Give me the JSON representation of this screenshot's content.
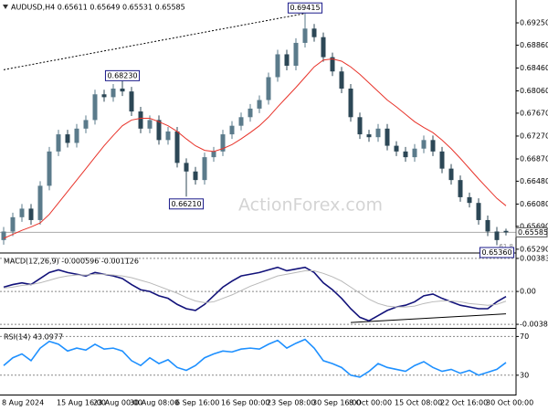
{
  "chart_data": [
    {
      "type": "candlestick",
      "title": "AUDUSD,H4 0.65611 0.65649 0.65531 0.65585",
      "up_color": "#5b7b8b",
      "down_color": "#2c4756",
      "open": [
        0.6545,
        0.656,
        0.6585,
        0.66,
        0.658,
        0.664,
        0.67,
        0.673,
        0.6715,
        0.674,
        0.6755,
        0.68,
        0.6795,
        0.681,
        0.6805,
        0.677,
        0.674,
        0.6755,
        0.672,
        0.6735,
        0.668,
        0.6665,
        0.665,
        0.669,
        0.67,
        0.673,
        0.6745,
        0.676,
        0.6775,
        0.679,
        0.683,
        0.687,
        0.685,
        0.689,
        0.6915,
        0.69,
        0.6865,
        0.684,
        0.681,
        0.676,
        0.673,
        0.6725,
        0.674,
        0.671,
        0.67,
        0.669,
        0.6705,
        0.672,
        0.67,
        0.667,
        0.665,
        0.662,
        0.661,
        0.658,
        0.656,
        0.65611
      ],
      "high": [
        0.6568,
        0.6593,
        0.6608,
        0.6608,
        0.6648,
        0.6708,
        0.6738,
        0.6738,
        0.6748,
        0.6763,
        0.6808,
        0.6808,
        0.6818,
        0.6823,
        0.6813,
        0.6778,
        0.6763,
        0.6763,
        0.6743,
        0.6743,
        0.6688,
        0.6673,
        0.6698,
        0.6708,
        0.6738,
        0.6753,
        0.6768,
        0.6783,
        0.6798,
        0.6838,
        0.6878,
        0.6878,
        0.6898,
        0.69415,
        0.6923,
        0.6908,
        0.6873,
        0.6848,
        0.6818,
        0.6768,
        0.6738,
        0.6748,
        0.6748,
        0.6718,
        0.6708,
        0.6713,
        0.6728,
        0.6728,
        0.6708,
        0.6678,
        0.6658,
        0.6628,
        0.6618,
        0.6588,
        0.6568,
        0.65649
      ],
      "low": [
        0.6537,
        0.6552,
        0.6577,
        0.6572,
        0.6572,
        0.6632,
        0.6692,
        0.6707,
        0.6707,
        0.6732,
        0.6747,
        0.6787,
        0.6787,
        0.6797,
        0.6762,
        0.6732,
        0.6732,
        0.6712,
        0.6712,
        0.6672,
        0.6621,
        0.6642,
        0.6642,
        0.6682,
        0.6692,
        0.6722,
        0.6737,
        0.6752,
        0.6767,
        0.6782,
        0.6822,
        0.6842,
        0.6842,
        0.6882,
        0.6892,
        0.6857,
        0.6832,
        0.6802,
        0.6752,
        0.6722,
        0.6717,
        0.6717,
        0.6702,
        0.6692,
        0.6682,
        0.6682,
        0.6697,
        0.6692,
        0.6662,
        0.6642,
        0.6612,
        0.6602,
        0.6572,
        0.6552,
        0.6536,
        0.65531
      ],
      "close": [
        0.656,
        0.6585,
        0.66,
        0.658,
        0.664,
        0.67,
        0.673,
        0.6715,
        0.674,
        0.6755,
        0.68,
        0.6795,
        0.681,
        0.6805,
        0.677,
        0.674,
        0.6755,
        0.672,
        0.6735,
        0.668,
        0.6665,
        0.665,
        0.669,
        0.67,
        0.673,
        0.6745,
        0.676,
        0.6775,
        0.679,
        0.683,
        0.687,
        0.685,
        0.689,
        0.6915,
        0.69,
        0.6865,
        0.684,
        0.681,
        0.676,
        0.673,
        0.6725,
        0.674,
        0.671,
        0.67,
        0.669,
        0.6705,
        0.672,
        0.67,
        0.667,
        0.665,
        0.662,
        0.661,
        0.658,
        0.656,
        0.6545,
        0.65585
      ],
      "ma": {
        "color": "#e8332a",
        "values": [
          0.6548,
          0.6555,
          0.6562,
          0.6568,
          0.6575,
          0.659,
          0.661,
          0.663,
          0.665,
          0.667,
          0.669,
          0.671,
          0.6728,
          0.6745,
          0.6755,
          0.6758,
          0.6758,
          0.6752,
          0.6745,
          0.6735,
          0.6722,
          0.671,
          0.6702,
          0.67,
          0.6705,
          0.6712,
          0.6722,
          0.6733,
          0.6745,
          0.676,
          0.6778,
          0.6795,
          0.6812,
          0.683,
          0.6848,
          0.686,
          0.6862,
          0.6858,
          0.6848,
          0.6835,
          0.682,
          0.6805,
          0.679,
          0.6778,
          0.6765,
          0.6752,
          0.6742,
          0.6733,
          0.672,
          0.6705,
          0.6688,
          0.667,
          0.6652,
          0.6635,
          0.6618,
          0.6605
        ]
      },
      "trendline": {
        "x": [
          0,
          33
        ],
        "values": [
          0.6843,
          0.69415
        ]
      },
      "annotations": [
        {
          "label": "0.69415",
          "x": 33,
          "value": 0.69415
        },
        {
          "label": "0.68230",
          "x": 13,
          "value": 0.6823
        },
        {
          "label": "0.66210",
          "x": 20,
          "value": 0.6621
        },
        {
          "label": "0.65360",
          "x": 54,
          "value": 0.6536
        }
      ],
      "current_price": {
        "value": 0.65585,
        "label": "0.65585"
      },
      "note": "61.8",
      "watermark": "ActionForex.com",
      "ylim": [
        0.6524,
        0.6965
      ],
      "yticks": [
        {
          "value": 0.6925,
          "label": "0.69250"
        },
        {
          "value": 0.6886,
          "label": "0.68860"
        },
        {
          "value": 0.6846,
          "label": "0.68460"
        },
        {
          "value": 0.6806,
          "label": "0.68060"
        },
        {
          "value": 0.6767,
          "label": "0.67670"
        },
        {
          "value": 0.6727,
          "label": "0.67270"
        },
        {
          "value": 0.6687,
          "label": "0.66870"
        },
        {
          "value": 0.6648,
          "label": "0.66480"
        },
        {
          "value": 0.6608,
          "label": "0.66080"
        },
        {
          "value": 0.6569,
          "label": "0.65690"
        },
        {
          "value": 0.6529,
          "label": "0.65290"
        }
      ],
      "categories": [
        "8 Aug 2024",
        null,
        null,
        null,
        null,
        null,
        "15 Aug 16:00",
        null,
        null,
        null,
        "23 Aug 00:00",
        null,
        null,
        null,
        "30 Aug 08:00",
        null,
        null,
        null,
        null,
        "6 Sep 16:00",
        null,
        null,
        null,
        null,
        "16 Sep 00:00",
        null,
        null,
        null,
        null,
        "23 Sep 08:00",
        null,
        null,
        null,
        null,
        "30 Sep 16:00",
        null,
        null,
        null,
        "8 Oct 00:00",
        null,
        null,
        null,
        null,
        "15 Oct 08:00",
        null,
        null,
        null,
        null,
        "22 Oct 16:00",
        null,
        null,
        null,
        null,
        "30 Oct 00:00",
        null,
        null
      ]
    },
    {
      "type": "line",
      "title": "MACD(12,26,9) -0.000596 -0.001126",
      "series": [
        {
          "color": "#12127a",
          "values": [
            0.0005,
            0.0008,
            0.001,
            0.0008,
            0.0015,
            0.0022,
            0.0025,
            0.0022,
            0.002,
            0.0018,
            0.0022,
            0.002,
            0.0018,
            0.0015,
            0.0008,
            0.0002,
            0.0,
            -0.0005,
            -0.0008,
            -0.0015,
            -0.002,
            -0.0022,
            -0.0015,
            -0.0005,
            0.0005,
            0.0012,
            0.0018,
            0.002,
            0.0022,
            0.0025,
            0.0028,
            0.0024,
            0.0026,
            0.0028,
            0.0022,
            0.001,
            0.0002,
            -0.0008,
            -0.002,
            -0.003,
            -0.0034,
            -0.0028,
            -0.0022,
            -0.0018,
            -0.0016,
            -0.0012,
            -0.0005,
            -0.0003,
            -0.0008,
            -0.0012,
            -0.0016,
            -0.0018,
            -0.002,
            -0.002,
            -0.0012,
            -0.000596
          ]
        },
        {
          "color": "#b8b8b8",
          "values": [
            0.0004,
            0.0005,
            0.0007,
            0.0008,
            0.001,
            0.0013,
            0.0016,
            0.0018,
            0.0019,
            0.0019,
            0.002,
            0.002,
            0.0019,
            0.0018,
            0.0016,
            0.0013,
            0.001,
            0.0006,
            0.0002,
            -0.0002,
            -0.0007,
            -0.0011,
            -0.0013,
            -0.0012,
            -0.0008,
            -0.0004,
            0.0001,
            0.0006,
            0.001,
            0.0014,
            0.0018,
            0.002,
            0.0022,
            0.0024,
            0.0024,
            0.0021,
            0.0017,
            0.0012,
            0.0005,
            -0.0002,
            -0.0009,
            -0.0014,
            -0.0017,
            -0.0018,
            -0.0018,
            -0.0017,
            -0.0014,
            -0.0012,
            -0.0011,
            -0.0011,
            -0.0012,
            -0.0014,
            -0.0015,
            -0.0016,
            -0.0015,
            -0.001126
          ]
        }
      ],
      "trendline": {
        "x": [
          38,
          55
        ],
        "values": [
          -0.0036,
          -0.0026
        ]
      },
      "ylim": [
        -0.00412,
        0.00425
      ],
      "yticks": [
        0.003834,
        {
          "value": 0,
          "label": "0.00"
        },
        -0.003811
      ]
    },
    {
      "type": "line",
      "title": "RSI(14) 43.0977",
      "series": [
        {
          "color": "#1e90ff",
          "values": [
            40,
            48,
            52,
            45,
            58,
            65,
            62,
            55,
            58,
            56,
            62,
            57,
            58,
            55,
            45,
            40,
            48,
            42,
            46,
            38,
            35,
            40,
            48,
            52,
            55,
            54,
            57,
            58,
            57,
            62,
            66,
            58,
            63,
            67,
            58,
            45,
            42,
            38,
            30,
            28,
            34,
            42,
            38,
            36,
            34,
            40,
            44,
            38,
            34,
            36,
            32,
            35,
            30,
            33,
            36,
            43.0977
          ]
        }
      ],
      "ylim": [
        10,
        77
      ],
      "yticks": [
        70,
        30
      ]
    }
  ]
}
